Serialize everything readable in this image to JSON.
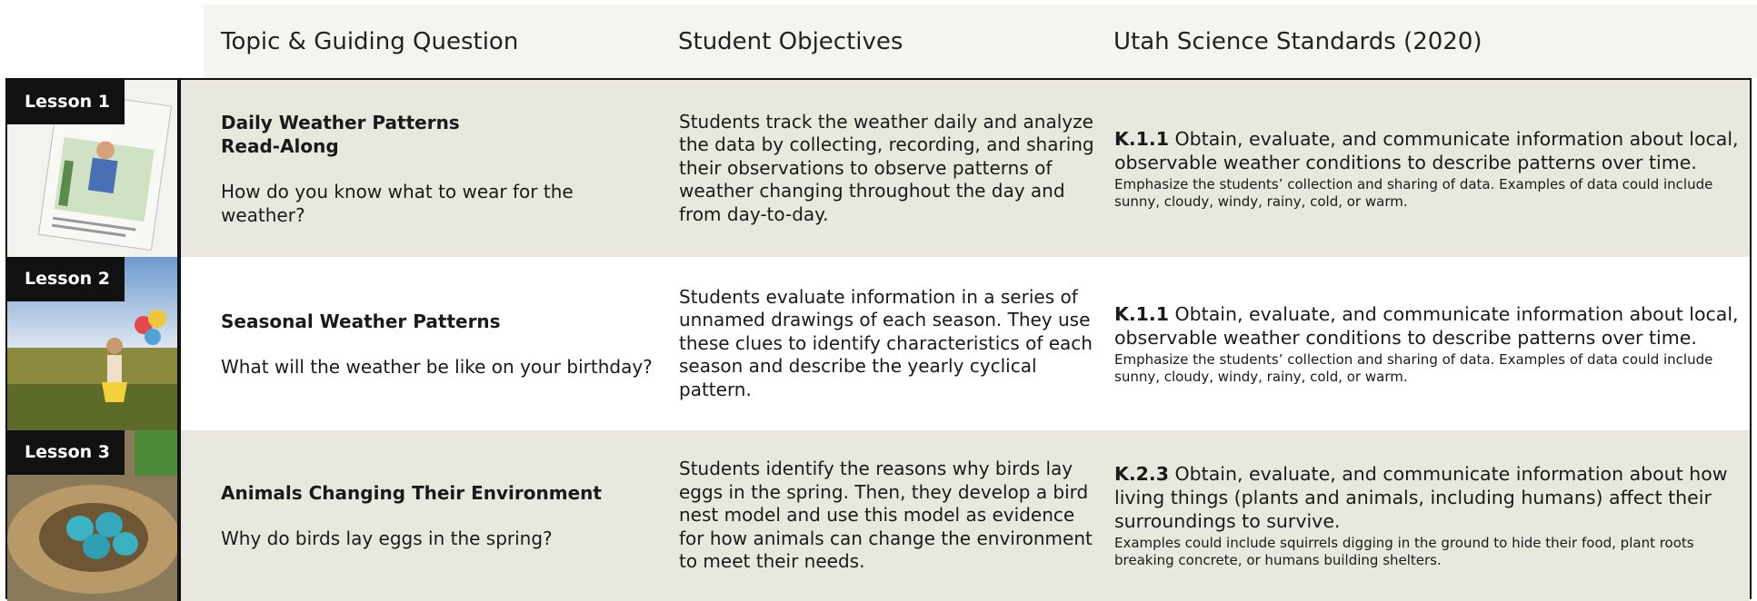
{
  "header": {
    "columns": [
      "Topic & Guiding Question",
      "Student Objectives",
      "Utah Science Standards (2020)"
    ]
  },
  "rows": [
    {
      "lesson": "Lesson 1",
      "topic_title": "Daily Weather Patterns\nRead-Along",
      "question": "How do you know what to wear for the weather?",
      "objectives": "Students track the weather daily and analyze the data by collecting, recording, and sharing their observations to observe patterns of weather changing throughout the day and from day-to-day.",
      "standard_code": "K.1.1",
      "standard_text": "Obtain, evaluate, and communicate information about local, observable weather conditions to describe patterns over time.",
      "standard_note": "Emphasize the students’ collection and sharing of data. Examples of data could include sunny, cloudy, windy, rainy, cold, or warm."
    },
    {
      "lesson": "Lesson 2",
      "topic_title": "Seasonal Weather Patterns",
      "question": "What will the weather be like on your birthday?",
      "objectives": "Students evaluate information in a series of unnamed drawings of each season. They use these clues to identify characteristics of each season and describe the yearly cyclical pattern.",
      "standard_code": "K.1.1",
      "standard_text": "Obtain, evaluate, and communicate information about local, observable weather conditions to describe patterns over time.",
      "standard_note": "Emphasize the students’ collection and sharing of data. Examples of data could include sunny, cloudy, windy, rainy, cold, or warm."
    },
    {
      "lesson": "Lesson 3",
      "topic_title": "Animals Changing Their Environment",
      "question": "Why do birds lay eggs in the spring?",
      "objectives": "Students identify the reasons why birds lay eggs in the spring. Then, they develop a bird nest model and use this model as evidence for how animals can change the environment to meet their needs.",
      "standard_code": "K.2.3",
      "standard_text": "Obtain, evaluate, and communicate information about how living things (plants and animals, including humans) affect their surroundings to survive.",
      "standard_note": "Examples could include squirrels digging in the ground to hide their food, plant roots breaking concrete, or humans building shelters."
    }
  ]
}
